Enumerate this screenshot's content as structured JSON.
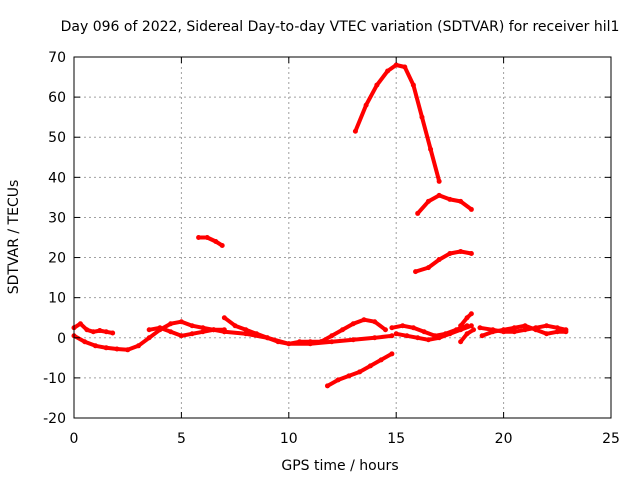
{
  "chart_data": {
    "type": "scatter",
    "title": "Day 096 of 2022, Sidereal Day-to-day VTEC variation (SDTVAR) for receiver hil1",
    "xlabel": "GPS time / hours",
    "ylabel": "SDTVAR / TECUs",
    "xlim": [
      0,
      25
    ],
    "ylim": [
      -20,
      70
    ],
    "xticks": [
      "0",
      "5",
      "10",
      "15",
      "20",
      "25"
    ],
    "yticks": [
      "-20",
      "-10",
      "0",
      "10",
      "20",
      "30",
      "40",
      "50",
      "60",
      "70"
    ],
    "grid": true,
    "color": "#ff0000",
    "series": [
      {
        "x": [
          0.0,
          0.3,
          0.6,
          0.9,
          1.2,
          1.5,
          1.8
        ],
        "y": [
          2.5,
          3.5,
          2.0,
          1.5,
          1.8,
          1.5,
          1.2
        ]
      },
      {
        "x": [
          0.0,
          0.5,
          1.0,
          1.5,
          2.0,
          2.5,
          3.0,
          3.5,
          4.0,
          4.5,
          5.0,
          5.5,
          6.0,
          6.5,
          7.0
        ],
        "y": [
          0.5,
          -1.0,
          -2.0,
          -2.5,
          -2.8,
          -3.0,
          -2.0,
          0.0,
          2.0,
          3.5,
          4.0,
          3.0,
          2.5,
          2.0,
          1.5
        ]
      },
      {
        "x": [
          3.5,
          4.0,
          4.5,
          5.0,
          5.5,
          6.0,
          6.5,
          7.0
        ],
        "y": [
          2.0,
          2.5,
          1.5,
          0.5,
          1.0,
          1.5,
          2.0,
          2.0
        ]
      },
      {
        "x": [
          5.8,
          6.2,
          6.6,
          6.9
        ],
        "y": [
          25.0,
          25.0,
          24.0,
          23.0
        ]
      },
      {
        "x": [
          7.0,
          7.5,
          8.0,
          8.5,
          9.0,
          9.5,
          10.0,
          10.5,
          11.0,
          11.5
        ],
        "y": [
          5.0,
          3.0,
          2.0,
          1.0,
          0.0,
          -1.0,
          -1.5,
          -1.0,
          -1.0,
          -1.0
        ]
      },
      {
        "x": [
          7.0,
          8.0,
          9.0,
          10.0,
          11.0,
          12.0,
          13.0,
          14.0,
          14.8
        ],
        "y": [
          1.5,
          1.0,
          0.0,
          -1.5,
          -1.5,
          -1.0,
          -0.5,
          0.0,
          0.5
        ]
      },
      {
        "x": [
          11.5,
          12.0,
          12.5,
          13.0,
          13.5,
          14.0,
          14.5
        ],
        "y": [
          -1.0,
          0.5,
          2.0,
          3.5,
          4.5,
          4.0,
          2.0
        ]
      },
      {
        "x": [
          11.8,
          12.3,
          12.8,
          13.3,
          13.8,
          14.3,
          14.8
        ],
        "y": [
          -12.0,
          -10.5,
          -9.5,
          -8.5,
          -7.0,
          -5.5,
          -4.0
        ]
      },
      {
        "x": [
          13.1,
          13.6,
          14.1,
          14.6,
          15.0,
          15.4,
          15.8,
          16.2,
          16.6,
          17.0
        ],
        "y": [
          51.5,
          58.0,
          63.0,
          66.5,
          68.0,
          67.5,
          63.0,
          55.0,
          47.0,
          39.0
        ]
      },
      {
        "x": [
          14.8,
          15.3,
          15.8,
          16.3,
          16.8,
          17.3,
          17.8,
          18.3
        ],
        "y": [
          2.5,
          3.0,
          2.5,
          1.5,
          0.5,
          1.0,
          2.0,
          3.0
        ]
      },
      {
        "x": [
          15.0,
          15.5,
          16.0,
          16.5,
          17.0,
          17.5,
          18.0,
          18.5
        ],
        "y": [
          1.0,
          0.5,
          0.0,
          -0.5,
          0.0,
          1.0,
          2.0,
          3.0
        ]
      },
      {
        "x": [
          18.0,
          18.3,
          18.5
        ],
        "y": [
          3.0,
          5.0,
          6.0
        ]
      },
      {
        "x": [
          18.0,
          18.3,
          18.6
        ],
        "y": [
          -1.0,
          1.0,
          2.0
        ]
      },
      {
        "x": [
          16.0,
          16.5,
          17.0,
          17.5,
          18.0,
          18.5
        ],
        "y": [
          31.0,
          34.0,
          35.5,
          34.5,
          34.0,
          32.0
        ]
      },
      {
        "x": [
          15.9,
          16.5,
          17.0,
          17.5,
          18.0,
          18.5
        ],
        "y": [
          16.5,
          17.5,
          19.5,
          21.0,
          21.5,
          21.0
        ]
      },
      {
        "x": [
          18.9,
          19.5,
          20.0,
          20.5,
          21.0,
          21.5,
          22.0,
          22.5,
          22.9
        ],
        "y": [
          2.5,
          2.0,
          1.5,
          1.5,
          2.0,
          2.5,
          3.0,
          2.5,
          2.0
        ]
      },
      {
        "x": [
          19.0,
          19.5,
          20.0,
          20.5,
          21.0,
          21.5,
          22.0,
          22.5,
          22.9
        ],
        "y": [
          0.5,
          1.5,
          2.0,
          2.5,
          3.0,
          2.0,
          1.0,
          1.5,
          1.5
        ]
      }
    ]
  }
}
